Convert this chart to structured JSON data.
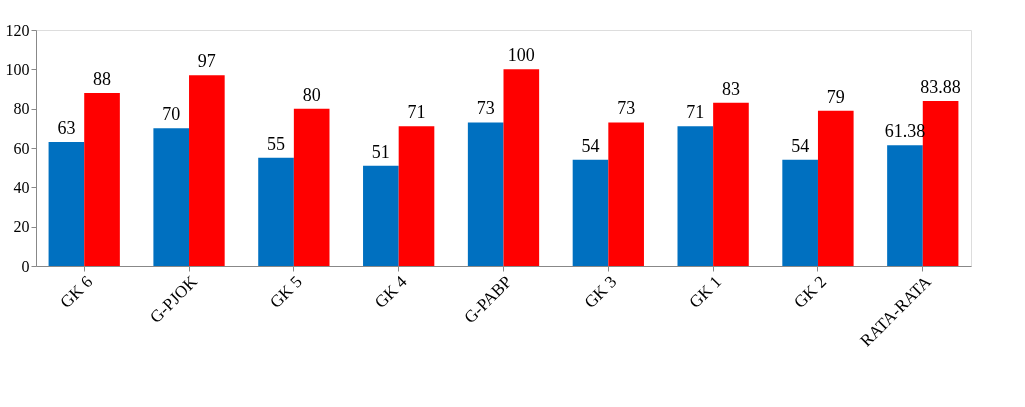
{
  "chart_data": {
    "type": "bar",
    "categories": [
      "GK 6",
      "G-PJOK",
      "GK 5",
      "GK 4",
      "G-PABP",
      "GK 3",
      "GK 1",
      "GK 2",
      "RATA-RATA"
    ],
    "series": [
      {
        "color": "#0070c0",
        "values": [
          63,
          70,
          55,
          51,
          73,
          54,
          71,
          54,
          61.38
        ]
      },
      {
        "color": "#ff0000",
        "values": [
          88,
          97,
          80,
          71,
          100,
          73,
          83,
          79,
          83.88
        ]
      }
    ],
    "ylim": [
      0,
      120
    ],
    "yticks": [
      0,
      20,
      40,
      60,
      80,
      100,
      120
    ],
    "grid": false,
    "legend": false,
    "data_labels": true
  }
}
